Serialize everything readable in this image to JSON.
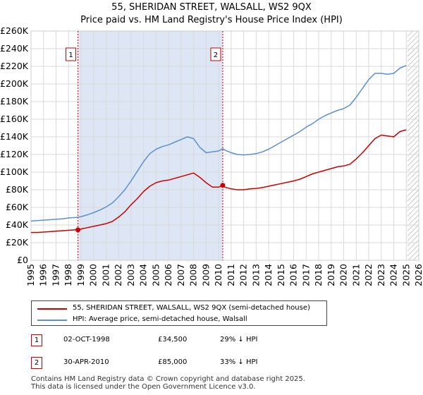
{
  "chart_data": {
    "type": "line",
    "title": "55, SHERIDAN STREET, WALSALL, WS2 9QX",
    "subtitle": "Price paid vs. HM Land Registry's House Price Index (HPI)",
    "xlabel": "",
    "ylabel": "",
    "xlim": [
      1995,
      2026
    ],
    "ylim": [
      0,
      260000
    ],
    "x_ticks": [
      "1995",
      "1996",
      "1997",
      "1998",
      "1999",
      "2000",
      "2001",
      "2002",
      "2003",
      "2004",
      "2005",
      "2006",
      "2007",
      "2008",
      "2009",
      "2010",
      "2011",
      "2012",
      "2013",
      "2014",
      "2015",
      "2016",
      "2017",
      "2018",
      "2019",
      "2020",
      "2021",
      "2022",
      "2023",
      "2024",
      "2025",
      "2026"
    ],
    "y_ticks": [
      {
        "value": 0,
        "label": "£0"
      },
      {
        "value": 20000,
        "label": "£20K"
      },
      {
        "value": 40000,
        "label": "£40K"
      },
      {
        "value": 60000,
        "label": "£60K"
      },
      {
        "value": 80000,
        "label": "£80K"
      },
      {
        "value": 100000,
        "label": "£100K"
      },
      {
        "value": 120000,
        "label": "£120K"
      },
      {
        "value": 140000,
        "label": "£140K"
      },
      {
        "value": 160000,
        "label": "£160K"
      },
      {
        "value": 180000,
        "label": "£180K"
      },
      {
        "value": 200000,
        "label": "£200K"
      },
      {
        "value": 220000,
        "label": "£220K"
      },
      {
        "value": 240000,
        "label": "£240K"
      },
      {
        "value": 260000,
        "label": "£260K"
      }
    ],
    "grid": true,
    "shaded_between": [
      1998.75,
      2010.33
    ],
    "future_hatch_from": 2025.1,
    "series": [
      {
        "name": "55, SHERIDAN STREET, WALSALL, WS2 9QX (semi-detached house)",
        "color": "#cc0000",
        "x": [
          1995.0,
          1995.5,
          1996.0,
          1996.5,
          1997.0,
          1997.5,
          1998.0,
          1998.5,
          1998.75,
          1999.0,
          1999.5,
          2000.0,
          2000.5,
          2001.0,
          2001.5,
          2002.0,
          2002.5,
          2003.0,
          2003.5,
          2004.0,
          2004.5,
          2005.0,
          2005.5,
          2006.0,
          2006.5,
          2007.0,
          2007.5,
          2008.0,
          2008.5,
          2009.0,
          2009.5,
          2010.0,
          2010.33,
          2010.5,
          2011.0,
          2011.5,
          2012.0,
          2012.5,
          2013.0,
          2013.5,
          2014.0,
          2014.5,
          2015.0,
          2015.5,
          2016.0,
          2016.5,
          2017.0,
          2017.5,
          2018.0,
          2018.5,
          2019.0,
          2019.5,
          2020.0,
          2020.5,
          2021.0,
          2021.5,
          2022.0,
          2022.5,
          2023.0,
          2023.5,
          2024.0,
          2024.5,
          2025.0
        ],
        "y": [
          31500,
          31500,
          32000,
          32500,
          33000,
          33500,
          34000,
          34500,
          34500,
          35500,
          37000,
          38500,
          40000,
          41500,
          44000,
          49000,
          55000,
          63000,
          70000,
          78000,
          84000,
          88000,
          90000,
          91000,
          93000,
          95000,
          97000,
          99000,
          94000,
          88000,
          83000,
          83000,
          85000,
          83000,
          81000,
          80000,
          80000,
          81000,
          81500,
          82500,
          84000,
          85500,
          87000,
          88500,
          90000,
          92000,
          95000,
          98000,
          100000,
          102000,
          104000,
          106000,
          107000,
          109000,
          115000,
          122000,
          130000,
          138000,
          142000,
          141000,
          140000,
          146000,
          148000
        ]
      },
      {
        "name": "HPI: Average price, semi-detached house, Walsall",
        "color": "#5b8fd0",
        "x": [
          1995.0,
          1995.5,
          1996.0,
          1996.5,
          1997.0,
          1997.5,
          1998.0,
          1998.5,
          1998.75,
          1999.0,
          1999.5,
          2000.0,
          2000.5,
          2001.0,
          2001.5,
          2002.0,
          2002.5,
          2003.0,
          2003.5,
          2004.0,
          2004.5,
          2005.0,
          2005.5,
          2006.0,
          2006.5,
          2007.0,
          2007.5,
          2008.0,
          2008.5,
          2009.0,
          2009.5,
          2010.0,
          2010.33,
          2010.5,
          2011.0,
          2011.5,
          2012.0,
          2012.5,
          2013.0,
          2013.5,
          2014.0,
          2014.5,
          2015.0,
          2015.5,
          2016.0,
          2016.5,
          2017.0,
          2017.5,
          2018.0,
          2018.5,
          2019.0,
          2019.5,
          2020.0,
          2020.5,
          2021.0,
          2021.5,
          2022.0,
          2022.5,
          2023.0,
          2023.5,
          2024.0,
          2024.5,
          2025.0
        ],
        "y": [
          44500,
          45000,
          45500,
          46000,
          46500,
          47000,
          48000,
          48500,
          48800,
          49500,
          51500,
          54000,
          57000,
          60500,
          65000,
          72000,
          80000,
          90000,
          101000,
          112000,
          121000,
          126000,
          129000,
          131000,
          134000,
          137000,
          140000,
          138000,
          128000,
          122000,
          123000,
          124000,
          126500,
          125000,
          122000,
          120000,
          119500,
          120000,
          121000,
          123000,
          126000,
          130000,
          134000,
          138000,
          142000,
          146000,
          151000,
          155000,
          160000,
          164000,
          167000,
          170000,
          172000,
          176000,
          185000,
          195000,
          205000,
          212000,
          212000,
          211000,
          212000,
          218000,
          221000
        ]
      }
    ],
    "annotations": [
      {
        "label": "1",
        "x": 1998.75,
        "y": 34500
      },
      {
        "label": "2",
        "x": 2010.33,
        "y": 85000
      }
    ]
  },
  "legend": {
    "entries": [
      {
        "label": "55, SHERIDAN STREET, WALSALL, WS2 9QX (semi-detached house)",
        "color": "#cc0000"
      },
      {
        "label": "HPI: Average price, semi-detached house, Walsall",
        "color": "#5b8fd0"
      }
    ]
  },
  "sales": [
    {
      "marker": "1",
      "date": "02-OCT-1998",
      "price": "£34,500",
      "hpi_diff": "29% ↓ HPI"
    },
    {
      "marker": "2",
      "date": "30-APR-2010",
      "price": "£85,000",
      "hpi_diff": "33% ↓ HPI"
    }
  ],
  "footer": {
    "line1": "Contains HM Land Registry data © Crown copyright and database right 2025.",
    "line2": "This data is licensed under the Open Government Licence v3.0."
  }
}
